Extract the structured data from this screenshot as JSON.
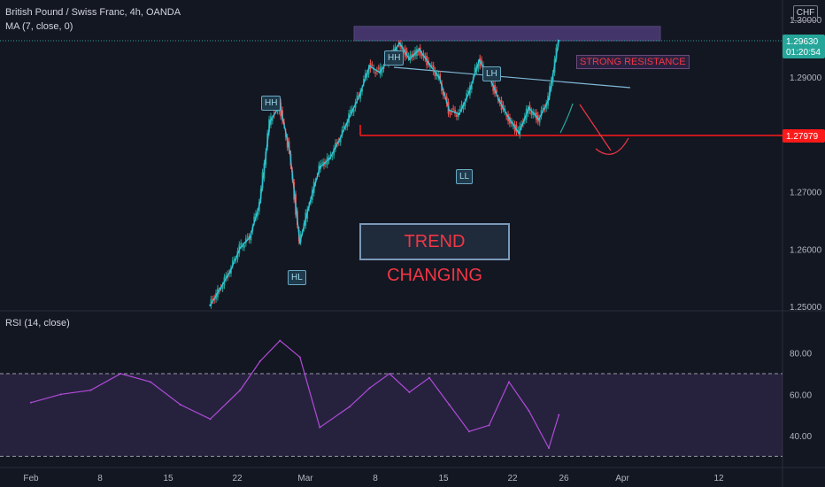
{
  "header": {
    "symbol": "British Pound / Swiss Franc, 4h, OANDA",
    "indicator": "MA (7, close, 0)",
    "currency": "CHF"
  },
  "annotations": {
    "hh_left": "HH",
    "hh_top": "HH",
    "lh": "LH",
    "hl": "HL",
    "ll": "LL",
    "strong_resistance": "STRONG RESISTANCE",
    "trend_changing": "TREND CHANGING"
  },
  "price_labels": {
    "current_price": "1.29630",
    "countdown": "01:20:54",
    "support_price": "1.27979"
  },
  "rsi_header": "RSI (14, close)",
  "colors": {
    "background": "#131722",
    "candle_up": "#26a69a",
    "candle_down": "#ef5350",
    "ma_line": "#2ec7e0",
    "rsi_line": "#b04bd8",
    "support_line": "#ff1a1a",
    "resistance_zone": "#7e57c2"
  },
  "chart_data": [
    {
      "type": "candlestick",
      "title": "British Pound / Swiss Franc, 4h, OANDA",
      "y_ticks": [
        "1.25000",
        "1.26000",
        "1.27000",
        "1.28000",
        "1.29000",
        "1.30000"
      ],
      "ylim": [
        1.2494,
        1.3034
      ],
      "x_ticks": [
        "Feb",
        "8",
        "15",
        "22",
        "Mar",
        "8",
        "15",
        "22",
        "26",
        "Apr",
        "12"
      ],
      "series": [
        {
          "name": "GBPCHF close",
          "x": [
            "Feb 19",
            "Feb 20",
            "Feb 21",
            "Feb 22",
            "Feb 23",
            "Feb 24",
            "Feb 25",
            "Feb 26",
            "Feb 27",
            "Feb 28",
            "Mar 1",
            "Mar 2",
            "Mar 3",
            "Mar 4",
            "Mar 5",
            "Mar 6",
            "Mar 7",
            "Mar 8",
            "Mar 9",
            "Mar 10",
            "Mar 11",
            "Mar 12",
            "Mar 13",
            "Mar 14",
            "Mar 15",
            "Mar 16",
            "Mar 17",
            "Mar 18",
            "Mar 19",
            "Mar 20",
            "Mar 21",
            "Mar 22",
            "Mar 23",
            "Mar 24",
            "Mar 25",
            "Mar 26"
          ],
          "values": [
            1.2502,
            1.2531,
            1.2561,
            1.2602,
            1.2621,
            1.2681,
            1.2822,
            1.2851,
            1.2769,
            1.2611,
            1.2681,
            1.2742,
            1.2758,
            1.2791,
            1.2831,
            1.2868,
            1.2919,
            1.2908,
            1.2931,
            1.2959,
            1.2931,
            1.2948,
            1.2922,
            1.2899,
            1.2842,
            1.2835,
            1.2873,
            1.2929,
            1.2902,
            1.2859,
            1.2828,
            1.2802,
            1.2846,
            1.2826,
            1.2861,
            1.2963
          ]
        }
      ],
      "levels": {
        "support": 1.27979,
        "current_price": 1.2963,
        "resistance_zone": [
          1.2963,
          1.2988
        ]
      }
    },
    {
      "type": "line",
      "title": "RSI (14, close)",
      "y_ticks": [
        "40.00",
        "60.00",
        "80.00"
      ],
      "ylim": [
        28,
        100
      ],
      "bands": [
        30,
        70
      ],
      "series": [
        {
          "name": "RSI",
          "x": [
            "Feb 1",
            "Feb 4",
            "Feb 7",
            "Feb 10",
            "Feb 13",
            "Feb 16",
            "Feb 19",
            "Feb 22",
            "Feb 24",
            "Feb 26",
            "Feb 28",
            "Mar 2",
            "Mar 5",
            "Mar 7",
            "Mar 9",
            "Mar 11",
            "Mar 13",
            "Mar 15",
            "Mar 17",
            "Mar 19",
            "Mar 21",
            "Mar 23",
            "Mar 25",
            "Mar 26"
          ],
          "values": [
            56,
            60,
            62,
            70,
            66,
            55,
            48,
            62,
            76,
            86,
            78,
            44,
            54,
            63,
            70,
            61,
            68,
            55,
            42,
            45,
            66,
            52,
            34,
            50
          ]
        }
      ]
    }
  ]
}
